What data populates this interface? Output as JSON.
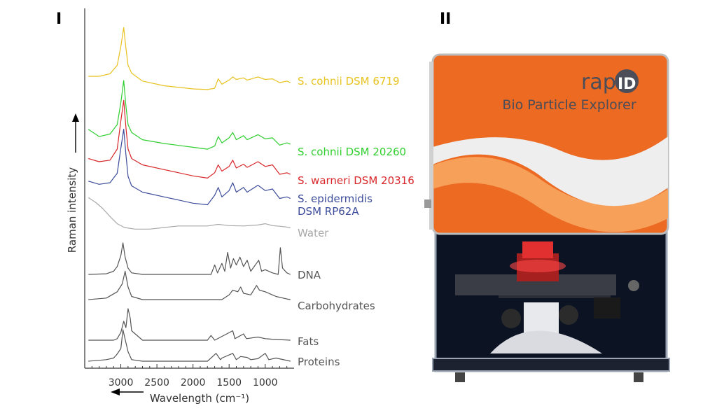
{
  "panels": {
    "left": {
      "label": "I"
    },
    "right": {
      "label": "II"
    }
  },
  "instrument": {
    "brand": "rapID",
    "product_name": "Bio Particle Explorer"
  },
  "colors": {
    "yellow": "#e8c21e",
    "green": "#2fcf2f",
    "red": "#d8262a",
    "blue": "#3c4b9a",
    "gray": "#a8a8a8",
    "dark": "#555555",
    "orange": "#ec6a22"
  },
  "chart_data": {
    "type": "line",
    "xlabel": "Wavelength (cm⁻¹)",
    "ylabel": "Raman intensity",
    "x_ticks": [
      3000,
      2500,
      2000,
      1500,
      1000
    ],
    "x_tick_labels": [
      "3000",
      "2500",
      "2000",
      "1500",
      "1000"
    ],
    "xlim": [
      3500,
      600
    ],
    "x_reversed": true,
    "arrows": [
      "x decreasing (toward higher wavenumber)",
      "y increasing"
    ],
    "grid": false,
    "legend": "labels at right end of each trace",
    "series": [
      {
        "name": "S. cohnii DSM 6719",
        "color": "#e8c21e",
        "label_lines": [
          "S. cohnii DSM 6719"
        ],
        "points": [
          [
            3450,
            0.2
          ],
          [
            3300,
            0.2
          ],
          [
            3150,
            0.28
          ],
          [
            3050,
            0.55
          ],
          [
            3000,
            1.15
          ],
          [
            2960,
            1.75
          ],
          [
            2930,
            1.1
          ],
          [
            2900,
            0.55
          ],
          [
            2850,
            0.3
          ],
          [
            2700,
            0.05
          ],
          [
            2400,
            -0.1
          ],
          [
            2000,
            -0.2
          ],
          [
            1800,
            -0.22
          ],
          [
            1700,
            -0.18
          ],
          [
            1650,
            0.12
          ],
          [
            1600,
            -0.05
          ],
          [
            1500,
            0.08
          ],
          [
            1450,
            0.18
          ],
          [
            1400,
            0.1
          ],
          [
            1300,
            0.15
          ],
          [
            1250,
            0.08
          ],
          [
            1100,
            0.18
          ],
          [
            1000,
            0.1
          ],
          [
            900,
            0.12
          ],
          [
            800,
            0.0
          ],
          [
            700,
            0.05
          ],
          [
            650,
            0.0
          ]
        ]
      },
      {
        "name": "S. cohnii DSM 20260",
        "color": "#2fcf2f",
        "label_lines": [
          "S. cohnii DSM 20260"
        ],
        "points": [
          [
            3450,
            0.45
          ],
          [
            3300,
            0.22
          ],
          [
            3150,
            0.3
          ],
          [
            3050,
            0.6
          ],
          [
            3000,
            1.3
          ],
          [
            2960,
            2.0
          ],
          [
            2930,
            1.2
          ],
          [
            2900,
            0.6
          ],
          [
            2850,
            0.35
          ],
          [
            2700,
            0.12
          ],
          [
            2400,
            0.0
          ],
          [
            2000,
            -0.12
          ],
          [
            1800,
            -0.18
          ],
          [
            1700,
            -0.08
          ],
          [
            1650,
            0.22
          ],
          [
            1600,
            0.02
          ],
          [
            1500,
            0.18
          ],
          [
            1450,
            0.35
          ],
          [
            1400,
            0.12
          ],
          [
            1300,
            0.25
          ],
          [
            1250,
            0.12
          ],
          [
            1100,
            0.28
          ],
          [
            1000,
            0.15
          ],
          [
            900,
            0.18
          ],
          [
            800,
            -0.05
          ],
          [
            700,
            0.02
          ],
          [
            650,
            -0.02
          ]
        ]
      },
      {
        "name": "S. warneri DSM 20316",
        "color": "#d8262a",
        "label_lines": [
          "S. warneri DSM 20316"
        ],
        "points": [
          [
            3450,
            0.3
          ],
          [
            3300,
            0.2
          ],
          [
            3150,
            0.25
          ],
          [
            3050,
            0.6
          ],
          [
            3000,
            1.5
          ],
          [
            2960,
            2.15
          ],
          [
            2930,
            1.3
          ],
          [
            2900,
            0.6
          ],
          [
            2850,
            0.3
          ],
          [
            2700,
            0.1
          ],
          [
            2400,
            -0.05
          ],
          [
            2000,
            -0.25
          ],
          [
            1800,
            -0.32
          ],
          [
            1700,
            -0.15
          ],
          [
            1650,
            0.1
          ],
          [
            1600,
            -0.1
          ],
          [
            1500,
            0.05
          ],
          [
            1450,
            0.25
          ],
          [
            1400,
            0.0
          ],
          [
            1300,
            0.12
          ],
          [
            1250,
            0.02
          ],
          [
            1100,
            0.2
          ],
          [
            1000,
            0.05
          ],
          [
            900,
            0.1
          ],
          [
            800,
            -0.2
          ],
          [
            700,
            -0.15
          ],
          [
            650,
            -0.2
          ]
        ]
      },
      {
        "name": "S. epidermidis DSM RP62A",
        "color": "#3c4b9a",
        "label_lines": [
          "S. epidermidis",
          "DSM RP62A"
        ],
        "points": [
          [
            3450,
            0.25
          ],
          [
            3300,
            0.15
          ],
          [
            3150,
            0.2
          ],
          [
            3050,
            0.5
          ],
          [
            3000,
            1.3
          ],
          [
            2960,
            1.9
          ],
          [
            2930,
            1.1
          ],
          [
            2900,
            0.4
          ],
          [
            2850,
            0.1
          ],
          [
            2700,
            -0.1
          ],
          [
            2400,
            -0.25
          ],
          [
            2000,
            -0.45
          ],
          [
            1800,
            -0.5
          ],
          [
            1700,
            -0.2
          ],
          [
            1650,
            0.05
          ],
          [
            1600,
            -0.25
          ],
          [
            1500,
            -0.05
          ],
          [
            1450,
            0.2
          ],
          [
            1400,
            -0.1
          ],
          [
            1300,
            0.05
          ],
          [
            1250,
            -0.1
          ],
          [
            1100,
            0.12
          ],
          [
            1000,
            -0.05
          ],
          [
            900,
            0.0
          ],
          [
            800,
            -0.3
          ],
          [
            700,
            -0.25
          ],
          [
            650,
            -0.3
          ]
        ]
      },
      {
        "name": "Water",
        "color": "#a8a8a8",
        "label_lines": [
          "Water"
        ],
        "points": [
          [
            3450,
            0.95
          ],
          [
            3350,
            0.8
          ],
          [
            3250,
            0.6
          ],
          [
            3150,
            0.35
          ],
          [
            3050,
            0.12
          ],
          [
            2950,
            0.0
          ],
          [
            2800,
            -0.05
          ],
          [
            2600,
            -0.05
          ],
          [
            2400,
            0.0
          ],
          [
            2200,
            0.05
          ],
          [
            2000,
            0.05
          ],
          [
            1800,
            0.05
          ],
          [
            1650,
            0.1
          ],
          [
            1500,
            0.06
          ],
          [
            1300,
            0.05
          ],
          [
            1100,
            0.08
          ],
          [
            1000,
            0.12
          ],
          [
            900,
            0.06
          ],
          [
            800,
            0.04
          ],
          [
            650,
            0.0
          ]
        ]
      },
      {
        "name": "DNA",
        "color": "#555555",
        "label_lines": [
          "DNA"
        ],
        "points": [
          [
            3450,
            0.0
          ],
          [
            3200,
            0.02
          ],
          [
            3100,
            0.1
          ],
          [
            3050,
            0.25
          ],
          [
            3000,
            0.6
          ],
          [
            2970,
            1.0
          ],
          [
            2940,
            0.55
          ],
          [
            2900,
            0.2
          ],
          [
            2850,
            0.05
          ],
          [
            2700,
            0.0
          ],
          [
            2000,
            0.0
          ],
          [
            1750,
            0.0
          ],
          [
            1700,
            0.3
          ],
          [
            1660,
            0.05
          ],
          [
            1600,
            0.35
          ],
          [
            1560,
            0.1
          ],
          [
            1520,
            0.7
          ],
          [
            1480,
            0.2
          ],
          [
            1440,
            0.5
          ],
          [
            1400,
            0.3
          ],
          [
            1350,
            0.55
          ],
          [
            1300,
            0.25
          ],
          [
            1250,
            0.45
          ],
          [
            1200,
            0.1
          ],
          [
            1090,
            0.45
          ],
          [
            1050,
            0.1
          ],
          [
            1000,
            0.15
          ],
          [
            900,
            0.05
          ],
          [
            820,
            0.0
          ],
          [
            790,
            0.85
          ],
          [
            760,
            0.2
          ],
          [
            700,
            0.05
          ],
          [
            650,
            0.0
          ]
        ]
      },
      {
        "name": "Carbohydrates",
        "color": "#555555",
        "label_lines": [
          "Carbohydrates"
        ],
        "points": [
          [
            3450,
            0.0
          ],
          [
            3200,
            0.05
          ],
          [
            3050,
            0.25
          ],
          [
            2980,
            0.5
          ],
          [
            2940,
            0.9
          ],
          [
            2900,
            0.4
          ],
          [
            2850,
            0.1
          ],
          [
            2700,
            0.0
          ],
          [
            1600,
            0.0
          ],
          [
            1500,
            0.15
          ],
          [
            1450,
            0.3
          ],
          [
            1380,
            0.25
          ],
          [
            1340,
            0.4
          ],
          [
            1300,
            0.2
          ],
          [
            1200,
            0.15
          ],
          [
            1120,
            0.45
          ],
          [
            1080,
            0.3
          ],
          [
            1000,
            0.25
          ],
          [
            900,
            0.15
          ],
          [
            850,
            0.1
          ],
          [
            700,
            0.02
          ],
          [
            650,
            0.0
          ]
        ]
      },
      {
        "name": "Fats",
        "color": "#555555",
        "label_lines": [
          "Fats"
        ],
        "points": [
          [
            3450,
            0.0
          ],
          [
            3100,
            0.0
          ],
          [
            3050,
            0.05
          ],
          [
            3000,
            0.25
          ],
          [
            2960,
            0.6
          ],
          [
            2930,
            0.4
          ],
          [
            2900,
            1.0
          ],
          [
            2870,
            0.7
          ],
          [
            2850,
            0.3
          ],
          [
            2700,
            0.0
          ],
          [
            1800,
            0.0
          ],
          [
            1750,
            0.15
          ],
          [
            1700,
            0.0
          ],
          [
            1450,
            0.3
          ],
          [
            1420,
            0.05
          ],
          [
            1300,
            0.2
          ],
          [
            1260,
            0.05
          ],
          [
            1100,
            0.1
          ],
          [
            1000,
            0.05
          ],
          [
            900,
            0.03
          ],
          [
            650,
            0.0
          ]
        ]
      },
      {
        "name": "Proteins",
        "color": "#555555",
        "label_lines": [
          "Proteins"
        ],
        "points": [
          [
            3450,
            0.0
          ],
          [
            3200,
            0.05
          ],
          [
            3100,
            0.1
          ],
          [
            3060,
            0.2
          ],
          [
            3000,
            0.4
          ],
          [
            2970,
            1.0
          ],
          [
            2940,
            0.7
          ],
          [
            2900,
            0.3
          ],
          [
            2850,
            0.05
          ],
          [
            2700,
            0.0
          ],
          [
            1800,
            0.0
          ],
          [
            1680,
            0.25
          ],
          [
            1620,
            0.05
          ],
          [
            1600,
            0.1
          ],
          [
            1450,
            0.25
          ],
          [
            1400,
            0.05
          ],
          [
            1340,
            0.15
          ],
          [
            1250,
            0.12
          ],
          [
            1200,
            0.05
          ],
          [
            1100,
            0.08
          ],
          [
            1000,
            0.25
          ],
          [
            950,
            0.05
          ],
          [
            850,
            0.1
          ],
          [
            650,
            0.0
          ]
        ]
      }
    ]
  }
}
